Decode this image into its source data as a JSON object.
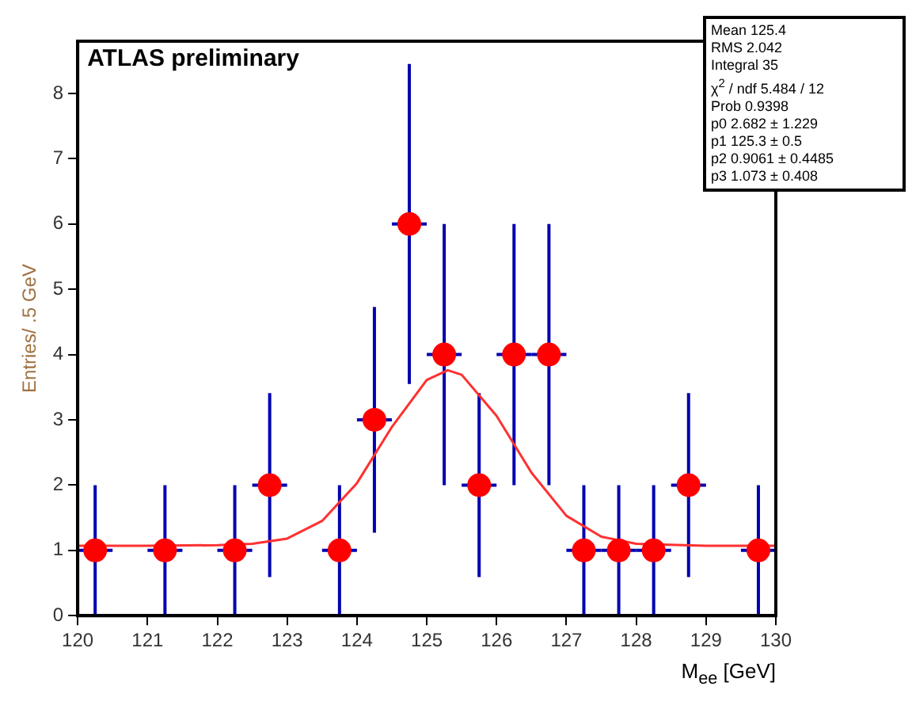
{
  "chart_data": {
    "type": "scatter",
    "xlabel": "M$_{ee}$ [GeV]",
    "ylabel": "Entries/ .5 GeV",
    "xlim": [
      120,
      130
    ],
    "xticks": [
      120,
      121,
      122,
      123,
      124,
      125,
      126,
      127,
      128,
      129,
      130
    ],
    "ylim": [
      0,
      8.8
    ],
    "yticks": [
      0,
      1,
      2,
      3,
      4,
      5,
      6,
      7,
      8
    ],
    "grid": false,
    "legend": false,
    "marker": "circle",
    "annotations": [
      "ATLAS preliminary",
      "Mean 125.4",
      "RMS 2.042",
      "Integral 35",
      "χ$^{2}$ / ndf 5.484 / 12",
      "Prob 0.9398",
      "p0 2.682 ± 1.229",
      "p1 125.3 ± 0.5",
      "p2 0.9061 ± 0.4485",
      "p3 1.073 ± 0.408"
    ],
    "series": [
      {
        "color": "#ff0000",
        "x": [
          120.25,
          121.25,
          122.25,
          122.75,
          123.75,
          124.25,
          124.75,
          125.25,
          125.75,
          126.25,
          126.75,
          127.25,
          127.75,
          128.25,
          128.75,
          129.75
        ],
        "values": [
          1,
          1,
          1,
          2,
          1,
          3,
          6,
          4,
          2,
          4,
          4,
          1,
          1,
          1,
          2,
          1
        ],
        "errors": [
          1,
          1,
          1,
          1.41,
          1,
          1.73,
          2.45,
          2,
          1.41,
          2,
          2,
          1,
          1,
          1,
          1.41,
          1
        ],
        "xerrors": [
          0.25,
          0.25,
          0.25,
          0.25,
          0.25,
          0.25,
          0.25,
          0.25,
          0.25,
          0.25,
          0.25,
          0.25,
          0.25,
          0.25,
          0.25,
          0.25
        ]
      },
      {
        "type": "line",
        "color": "#ff3030",
        "marker": "none",
        "x": [
          120,
          121,
          122,
          122.5,
          123,
          123.5,
          124,
          124.5,
          125,
          125.3,
          125.5,
          126,
          126.5,
          127,
          127.5,
          128,
          129,
          130
        ],
        "values": [
          1.07,
          1.07,
          1.08,
          1.1,
          1.18,
          1.45,
          2.03,
          2.89,
          3.61,
          3.76,
          3.69,
          3.06,
          2.19,
          1.53,
          1.21,
          1.1,
          1.07,
          1.07
        ]
      }
    ]
  }
}
